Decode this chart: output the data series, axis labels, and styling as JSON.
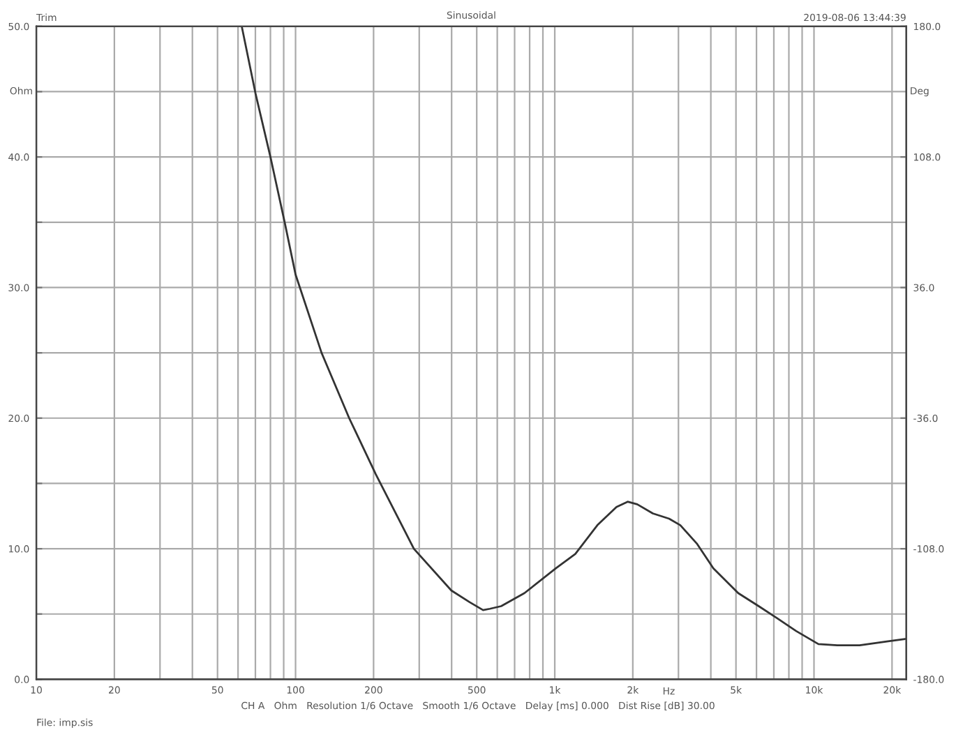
{
  "chart_data": {
    "type": "line",
    "title": "Sinusoidal",
    "xlabel": "Hz",
    "ylabel": "Ohm",
    "y2label": "Deg",
    "annotations": [
      "Trim",
      "2019-08-06 13:44:39",
      "CH A   Ohm   Resolution 1/6 Octave   Smooth 1/6 Octave   Delay [ms] 0.000   Dist Rise [dB] 30.00",
      "File: imp.sis"
    ],
    "log": "x",
    "grid": true,
    "legend": false,
    "marker": "none",
    "line_style": "solid",
    "xlim": [
      10,
      22700
    ],
    "ylim": [
      0,
      50
    ],
    "y2lim": [
      -180,
      180
    ],
    "xticks": [
      {
        "value": 10,
        "label": "10"
      },
      {
        "value": 20,
        "label": "20"
      },
      {
        "value": 30,
        "label": null
      },
      {
        "value": 40,
        "label": null
      },
      {
        "value": 50,
        "label": "50"
      },
      {
        "value": 60,
        "label": null
      },
      {
        "value": 70,
        "label": null
      },
      {
        "value": 80,
        "label": null
      },
      {
        "value": 90,
        "label": null
      },
      {
        "value": 100,
        "label": "100"
      },
      {
        "value": 200,
        "label": "200"
      },
      {
        "value": 300,
        "label": null
      },
      {
        "value": 400,
        "label": null
      },
      {
        "value": 500,
        "label": "500"
      },
      {
        "value": 600,
        "label": null
      },
      {
        "value": 700,
        "label": null
      },
      {
        "value": 800,
        "label": null
      },
      {
        "value": 900,
        "label": null
      },
      {
        "value": 1000,
        "label": "1k"
      },
      {
        "value": 2000,
        "label": "2k"
      },
      {
        "value": 3000,
        "label": null
      },
      {
        "value": 4000,
        "label": null
      },
      {
        "value": 5000,
        "label": "5k"
      },
      {
        "value": 6000,
        "label": null
      },
      {
        "value": 7000,
        "label": null
      },
      {
        "value": 8000,
        "label": null
      },
      {
        "value": 9000,
        "label": null
      },
      {
        "value": 10000,
        "label": "10k"
      },
      {
        "value": 20000,
        "label": "20k"
      }
    ],
    "yticks": [
      {
        "value": 0,
        "label": "0.0"
      },
      {
        "value": 5,
        "label": null
      },
      {
        "value": 10,
        "label": "10.0"
      },
      {
        "value": 15,
        "label": null
      },
      {
        "value": 20,
        "label": "20.0"
      },
      {
        "value": 25,
        "label": null
      },
      {
        "value": 30,
        "label": "30.0"
      },
      {
        "value": 35,
        "label": null
      },
      {
        "value": 40,
        "label": "40.0"
      },
      {
        "value": 45,
        "label": null
      },
      {
        "value": 50,
        "label": "50.0"
      }
    ],
    "y2ticks": [
      {
        "value": -180,
        "label": "-180.0"
      },
      {
        "value": -108,
        "label": "-108.0"
      },
      {
        "value": -36,
        "label": "-36.0"
      },
      {
        "value": 36,
        "label": "36.0"
      },
      {
        "value": 108,
        "label": "108.0"
      },
      {
        "value": 180,
        "label": "180.0"
      }
    ],
    "series": [
      {
        "color": "#333333",
        "x": [
          62,
          70,
          80,
          91,
          100,
          126,
          161,
          204,
          286,
          399,
          470,
          529,
          562,
          621,
          764,
          1010,
          1200,
          1460,
          1730,
          1910,
          2080,
          2390,
          2760,
          3050,
          3530,
          4090,
          5100,
          6120,
          7180,
          8530,
          10400,
          12300,
          15000,
          19100,
          22700
        ],
        "values": [
          50,
          44.9,
          40.0,
          34.9,
          31.0,
          25.0,
          20.0,
          15.7,
          10.0,
          6.8,
          5.9,
          5.3,
          5.4,
          5.6,
          6.6,
          8.5,
          9.6,
          11.8,
          13.2,
          13.6,
          13.4,
          12.7,
          12.3,
          11.8,
          10.4,
          8.5,
          6.6,
          5.6,
          4.7,
          3.7,
          2.7,
          2.6,
          2.6,
          2.9,
          3.1
        ]
      }
    ]
  }
}
